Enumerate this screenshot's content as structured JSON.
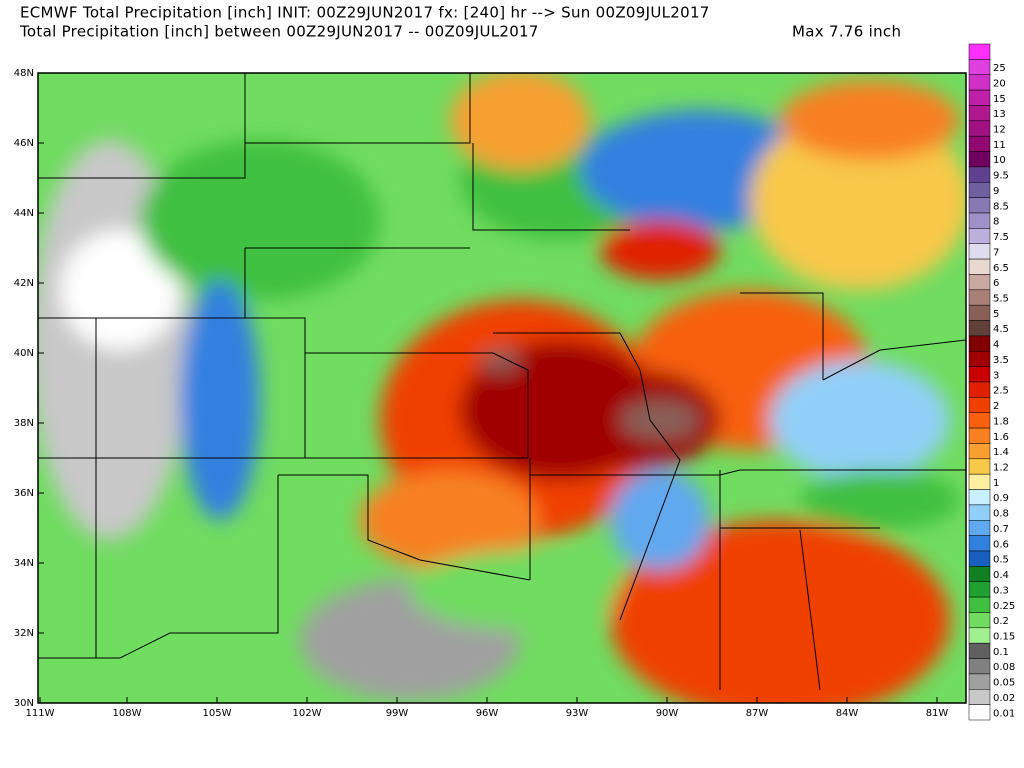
{
  "header": {
    "line1": "ECMWF Total Precipitation [inch] INIT: 00Z29JUN2017 fx: [240] hr --> Sun 00Z09JUL2017",
    "line2": "Total Precipitation [inch] between 00Z29JUN2017 -- 00Z09JUL2017",
    "max": "Max 7.76 inch"
  },
  "map": {
    "lat_labels": [
      "48N",
      "46N",
      "44N",
      "42N",
      "40N",
      "38N",
      "36N",
      "34N",
      "32N",
      "30N"
    ],
    "lon_labels": [
      "111W",
      "108W",
      "105W",
      "102W",
      "99W",
      "96W",
      "93W",
      "90W",
      "87W",
      "84W",
      "81W"
    ]
  },
  "colorbar": {
    "top_color": "#ff30ff",
    "levels": [
      {
        "label": "25",
        "color": "#e040e0"
      },
      {
        "label": "20",
        "color": "#d030c8"
      },
      {
        "label": "15",
        "color": "#c020a8"
      },
      {
        "label": "13",
        "color": "#b01890"
      },
      {
        "label": "12",
        "color": "#a01080"
      },
      {
        "label": "11",
        "color": "#900870"
      },
      {
        "label": "10",
        "color": "#700060"
      },
      {
        "label": "9.5",
        "color": "#604090"
      },
      {
        "label": "9",
        "color": "#7060a0"
      },
      {
        "label": "8.5",
        "color": "#8878b4"
      },
      {
        "label": "8",
        "color": "#a090c8"
      },
      {
        "label": "7.5",
        "color": "#bcb0dc"
      },
      {
        "label": "7",
        "color": "#e0dcf0"
      },
      {
        "label": "6.5",
        "color": "#e8d8d0"
      },
      {
        "label": "6",
        "color": "#c8a8a0"
      },
      {
        "label": "5.5",
        "color": "#a88078"
      },
      {
        "label": "5",
        "color": "#886058"
      },
      {
        "label": "4.5",
        "color": "#604038"
      },
      {
        "label": "4",
        "color": "#800000"
      },
      {
        "label": "3.5",
        "color": "#a00000"
      },
      {
        "label": "3",
        "color": "#c80000"
      },
      {
        "label": "2.5",
        "color": "#e02000"
      },
      {
        "label": "2",
        "color": "#f04000"
      },
      {
        "label": "1.8",
        "color": "#f86010"
      },
      {
        "label": "1.6",
        "color": "#f88020"
      },
      {
        "label": "1.4",
        "color": "#f8a030"
      },
      {
        "label": "1.2",
        "color": "#f8c848"
      },
      {
        "label": "1",
        "color": "#fff0a0"
      },
      {
        "label": "0.9",
        "color": "#c8f0ff"
      },
      {
        "label": "0.8",
        "color": "#90d0f8"
      },
      {
        "label": "0.7",
        "color": "#60a8f0"
      },
      {
        "label": "0.6",
        "color": "#3080e0"
      },
      {
        "label": "0.5",
        "color": "#1860c0"
      },
      {
        "label": "0.4",
        "color": "#108020"
      },
      {
        "label": "0.3",
        "color": "#20a030"
      },
      {
        "label": "0.25",
        "color": "#40c040"
      },
      {
        "label": "0.2",
        "color": "#70dc60"
      },
      {
        "label": "0.15",
        "color": "#a0f090"
      },
      {
        "label": "0.1",
        "color": "#606060"
      },
      {
        "label": "0.08",
        "color": "#808080"
      },
      {
        "label": "0.05",
        "color": "#a0a0a0"
      },
      {
        "label": "0.02",
        "color": "#c8c8c8"
      },
      {
        "label": "0.01",
        "color": "#ffffff"
      }
    ]
  }
}
